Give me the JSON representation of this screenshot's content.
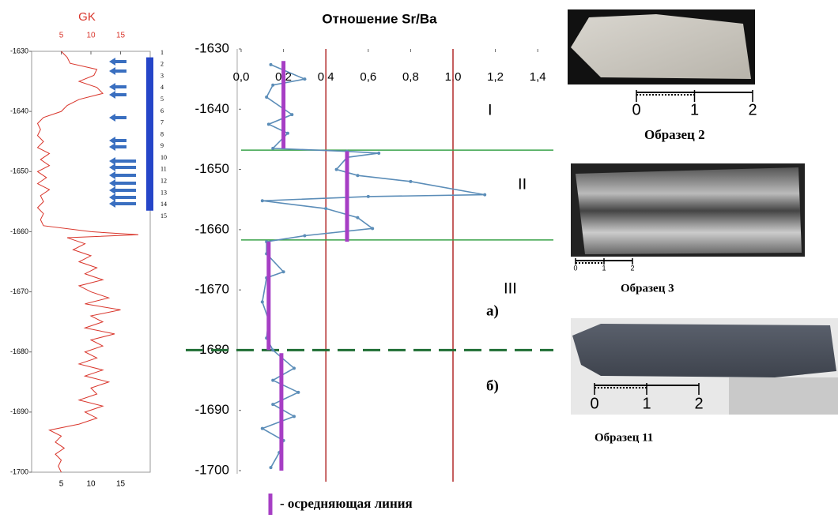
{
  "chart_data": [
    {
      "type": "line",
      "title": "GK",
      "color": "#d9352b",
      "xlim": [
        0,
        20
      ],
      "xticks": [
        5,
        10,
        15
      ],
      "ylim": [
        -1630,
        -1700
      ],
      "yticks": [
        -1630,
        -1640,
        -1650,
        -1660,
        -1670,
        -1680,
        -1690,
        -1700
      ],
      "depth": [
        -1630,
        -1631,
        -1632,
        -1633,
        -1634,
        -1635,
        -1636,
        -1637,
        -1638,
        -1639,
        -1640,
        -1641,
        -1642,
        -1643,
        -1644,
        -1645,
        -1646,
        -1647,
        -1648,
        -1649,
        -1650,
        -1651,
        -1652,
        -1653,
        -1654,
        -1655,
        -1656,
        -1657,
        -1658,
        -1659,
        -1660,
        -1660.5,
        -1661,
        -1662,
        -1663,
        -1664,
        -1665,
        -1666,
        -1667,
        -1668,
        -1669,
        -1670,
        -1671,
        -1672,
        -1673,
        -1674,
        -1675,
        -1676,
        -1677,
        -1678,
        -1679,
        -1680,
        -1681,
        -1682,
        -1683,
        -1684,
        -1685,
        -1686,
        -1687,
        -1688,
        -1689,
        -1690,
        -1691,
        -1692,
        -1693,
        -1694,
        -1695,
        -1696,
        -1697,
        -1698,
        -1699,
        -1700
      ],
      "values": [
        5,
        6,
        6.5,
        11,
        10.5,
        8,
        11,
        12,
        8,
        6,
        5,
        2,
        1,
        1.5,
        1,
        2,
        1,
        3,
        1.5,
        3,
        1,
        2.5,
        1,
        3,
        1.5,
        2,
        1,
        2,
        1.5,
        2,
        10,
        18,
        6,
        9,
        7,
        10,
        8,
        11,
        9,
        12,
        8,
        10,
        13,
        9,
        15,
        10,
        12,
        9,
        14,
        10,
        12,
        9,
        11,
        8,
        12,
        9,
        13,
        10,
        11,
        8,
        12,
        9,
        11,
        8,
        3,
        5,
        4,
        5.5,
        4,
        5,
        4.5,
        5
      ],
      "sample_numbers": [
        "1",
        "2",
        "3",
        "4",
        "5",
        "6",
        "7",
        "8",
        "9",
        "10",
        "11",
        "12",
        "13",
        "14",
        "15"
      ],
      "core_interval": [
        -1631,
        -1656.5
      ],
      "core_color": "#2545c8"
    },
    {
      "type": "line",
      "title": "Отношение Sr/Ba",
      "color": "#5b8db8",
      "xlim": [
        0,
        1.45
      ],
      "xticks": [
        {
          "value": 0,
          "label": "0,0"
        },
        {
          "value": 0.2,
          "label": "0,2"
        },
        {
          "value": 0.4,
          "label": "0,4"
        },
        {
          "value": 0.6,
          "label": "0,6"
        },
        {
          "value": 0.8,
          "label": "0,8"
        },
        {
          "value": 1.0,
          "label": "1,0"
        },
        {
          "value": 1.2,
          "label": "1,2"
        },
        {
          "value": 1.4,
          "label": "1,4"
        }
      ],
      "ylim": [
        -1630,
        -1700
      ],
      "yticks": [
        -1630,
        -1640,
        -1650,
        -1660,
        -1670,
        -1680,
        -1690,
        -1700
      ],
      "depth": [
        -1632.6,
        -1635,
        -1636,
        -1638,
        -1640.9,
        -1642.5,
        -1644,
        -1646.5,
        -1647,
        -1647.3,
        -1648,
        -1650,
        -1651,
        -1652,
        -1654.2,
        -1654.5,
        -1655.2,
        -1656.5,
        -1658,
        -1659.8,
        -1661,
        -1662,
        -1664,
        -1667,
        -1668,
        -1672,
        -1675,
        -1678,
        -1680,
        -1683,
        -1685,
        -1687,
        -1689,
        -1691,
        -1693,
        -1695,
        -1697,
        -1699.5
      ],
      "values": [
        0.14,
        0.3,
        0.15,
        0.12,
        0.24,
        0.13,
        0.22,
        0.15,
        0.5,
        0.65,
        0.5,
        0.45,
        0.55,
        0.8,
        1.15,
        0.6,
        0.1,
        0.4,
        0.55,
        0.62,
        0.3,
        0.12,
        0.12,
        0.2,
        0.12,
        0.1,
        0.13,
        0.12,
        0.15,
        0.25,
        0.15,
        0.27,
        0.15,
        0.25,
        0.1,
        0.2,
        0.18,
        0.14
      ],
      "vlines": [
        0.4,
        1.0
      ],
      "vline_color": "#b22a2a",
      "hlines": [
        -1646.8,
        -1661.7
      ],
      "hline_color": "#3aa34a",
      "dashed_hline": -1680,
      "dashed_color": "#1f6e34",
      "averages": [
        {
          "value": 0.2,
          "from": -1632,
          "to": -1646.5
        },
        {
          "value": 0.5,
          "from": -1647,
          "to": -1662
        },
        {
          "value": 0.13,
          "from": -1662,
          "to": -1680
        },
        {
          "value": 0.19,
          "from": -1680.5,
          "to": -1700
        }
      ],
      "average_color": "#a63ec4",
      "annotations": [
        "I",
        "II",
        "III",
        "а)",
        "б)"
      ],
      "legend": "- осредняющая линия"
    }
  ],
  "samples": [
    {
      "caption": "Образец 2",
      "scale": [
        "0",
        "1",
        "2"
      ]
    },
    {
      "caption": "Образец 3",
      "scale": [
        "0",
        "1",
        "2"
      ]
    },
    {
      "caption": "Образец 11",
      "scale": [
        "0",
        "1",
        "2"
      ]
    }
  ]
}
